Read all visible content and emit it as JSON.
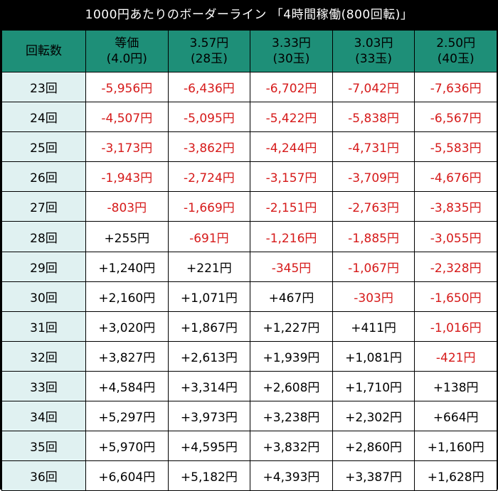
{
  "title": "1000円あたりのボーダーライン 「4時間稼働(800回転)」",
  "header": {
    "row_label": "回転数",
    "columns": [
      {
        "line1": "等価",
        "line2": "(4.0円)"
      },
      {
        "line1": "3.57円",
        "line2": "(28玉)"
      },
      {
        "line1": "3.33円",
        "line2": "(30玉)"
      },
      {
        "line1": "3.03円",
        "line2": "(33玉)"
      },
      {
        "line1": "2.50円",
        "line2": "(40玉)"
      }
    ]
  },
  "rows": [
    {
      "label": "23回",
      "values": [
        "-5,956円",
        "-6,436円",
        "-6,702円",
        "-7,042円",
        "-7,636円"
      ]
    },
    {
      "label": "24回",
      "values": [
        "-4,507円",
        "-5,095円",
        "-5,422円",
        "-5,838円",
        "-6,567円"
      ]
    },
    {
      "label": "25回",
      "values": [
        "-3,173円",
        "-3,862円",
        "-4,244円",
        "-4,731円",
        "-5,583円"
      ]
    },
    {
      "label": "26回",
      "values": [
        "-1,943円",
        "-2,724円",
        "-3,157円",
        "-3,709円",
        "-4,676円"
      ]
    },
    {
      "label": "27回",
      "values": [
        "-803円",
        "-1,669円",
        "-2,151円",
        "-2,763円",
        "-3,835円"
      ]
    },
    {
      "label": "28回",
      "values": [
        "+255円",
        "-691円",
        "-1,216円",
        "-1,885円",
        "-3,055円"
      ]
    },
    {
      "label": "29回",
      "values": [
        "+1,240円",
        "+221円",
        "-345円",
        "-1,067円",
        "-2,328円"
      ]
    },
    {
      "label": "30回",
      "values": [
        "+2,160円",
        "+1,071円",
        "+467円",
        "-303円",
        "-1,650円"
      ]
    },
    {
      "label": "31回",
      "values": [
        "+3,020円",
        "+1,867円",
        "+1,227円",
        "+411円",
        "-1,016円"
      ]
    },
    {
      "label": "32回",
      "values": [
        "+3,827円",
        "+2,613円",
        "+1,939円",
        "+1,081円",
        "-421円"
      ]
    },
    {
      "label": "33回",
      "values": [
        "+4,584円",
        "+3,314円",
        "+2,608円",
        "+1,710円",
        "+138円"
      ]
    },
    {
      "label": "34回",
      "values": [
        "+5,297円",
        "+3,973円",
        "+3,238円",
        "+2,302円",
        "+664円"
      ]
    },
    {
      "label": "35回",
      "values": [
        "+5,970円",
        "+4,595円",
        "+3,832円",
        "+2,860円",
        "+1,160円"
      ]
    },
    {
      "label": "36回",
      "values": [
        "+6,604円",
        "+5,182円",
        "+4,393円",
        "+3,387円",
        "+1,628円"
      ]
    }
  ],
  "colors": {
    "header_bg": "#1e8f78",
    "row_label_bg": "#e0f1f1",
    "negative_text": "#d61a1a",
    "positive_text": "#000000",
    "frame": "#000000"
  }
}
